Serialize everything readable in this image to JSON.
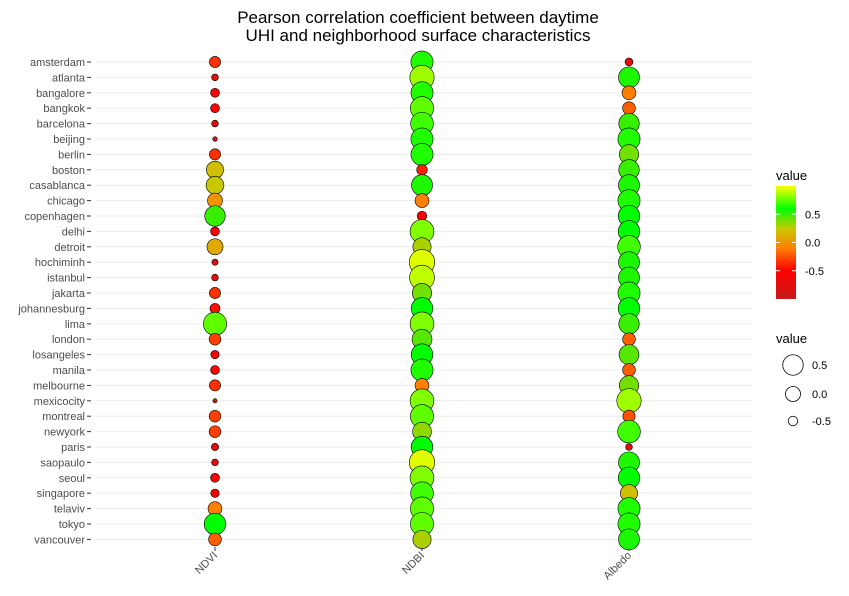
{
  "chart_data": {
    "type": "scatter",
    "title_lines": [
      "Pearson correlation coefficient between daytime",
      "UHI and neighborhood surface characteristics"
    ],
    "categories": [
      "NDVI",
      "NDBI",
      "Albedo"
    ],
    "cities": [
      "amsterdam",
      "atlanta",
      "bangalore",
      "bangkok",
      "barcelona",
      "beijing",
      "berlin",
      "boston",
      "casablanca",
      "chicago",
      "copenhagen",
      "delhi",
      "detroit",
      "hochiminh",
      "istanbul",
      "jakarta",
      "johannesburg",
      "lima",
      "london",
      "losangeles",
      "manila",
      "melbourne",
      "mexicocity",
      "montreal",
      "newyork",
      "paris",
      "saopaulo",
      "seoul",
      "singapore",
      "telaviv",
      "tokyo",
      "vancouver"
    ],
    "series": [
      {
        "name": "NDVI",
        "values": [
          -0.35,
          -0.75,
          -0.55,
          -0.55,
          -0.75,
          -0.95,
          -0.35,
          0.2,
          0.25,
          0.0,
          0.5,
          -0.55,
          0.1,
          -0.8,
          -0.75,
          -0.35,
          -0.45,
          0.75,
          -0.3,
          -0.6,
          -0.55,
          -0.35,
          -0.98,
          -0.3,
          -0.3,
          -0.7,
          -0.75,
          -0.55,
          -0.6,
          -0.1,
          0.6,
          -0.2
        ]
      },
      {
        "name": "NDBI",
        "values": [
          0.65,
          0.85,
          0.65,
          0.75,
          0.7,
          0.65,
          0.65,
          -0.4,
          0.55,
          -0.1,
          -0.5,
          0.8,
          0.3,
          0.95,
          0.9,
          0.4,
          0.6,
          0.8,
          0.45,
          0.6,
          0.65,
          -0.1,
          0.8,
          0.75,
          0.35,
          0.6,
          0.95,
          0.8,
          0.7,
          0.75,
          0.75,
          0.3
        ]
      },
      {
        "name": "Albedo",
        "values": [
          -0.65,
          0.55,
          -0.1,
          -0.2,
          0.5,
          0.65,
          0.4,
          0.5,
          0.55,
          0.65,
          0.6,
          0.6,
          0.7,
          0.55,
          0.55,
          0.65,
          0.6,
          0.5,
          -0.2,
          0.45,
          -0.2,
          0.4,
          0.85,
          -0.25,
          0.7,
          -0.75,
          0.55,
          0.6,
          0.2,
          0.65,
          0.65,
          0.55
        ]
      }
    ],
    "legends": {
      "color": {
        "title": "value",
        "ticks": [
          0.5,
          0.0,
          -0.5
        ],
        "tick_labels": [
          "0.5",
          "0.0",
          "-0.5"
        ]
      },
      "size": {
        "title": "value",
        "ticks": [
          0.5,
          0.0,
          -0.5
        ],
        "tick_labels": [
          "0.5",
          "0.0",
          "-0.5"
        ]
      }
    },
    "color_scale": [
      "#c41a1a",
      "#ff0000",
      "#ff7f00",
      "#c8c800",
      "#00ff00",
      "#ffff00"
    ],
    "range": [
      -1,
      1
    ],
    "grid": true,
    "legend_position": "right"
  }
}
